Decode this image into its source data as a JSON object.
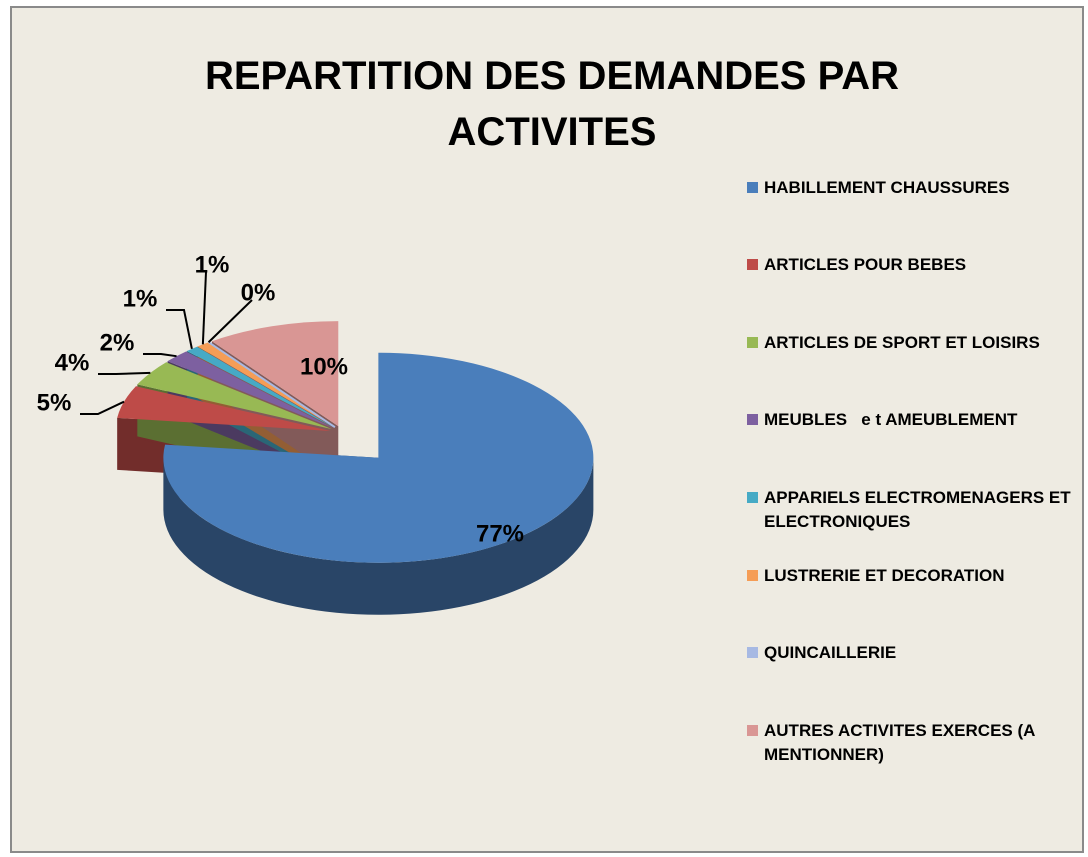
{
  "chart_data": {
    "type": "pie",
    "title": "REPARTITION DES DEMANDES PAR ACTIVITES",
    "categories": [
      "HABILLEMENT CHAUSSURES",
      "ARTICLES POUR BEBES",
      "ARTICLES DE SPORT ET LOISIRS",
      "MEUBLES   e t AMEUBLEMENT",
      "APPARIELS ELECTROMENAGERS ET ELECTRONIQUES",
      "LUSTRERIE ET DECORATION",
      "QUINCAILLERIE",
      "AUTRES ACTIVITES EXERCES (A MENTIONNER)"
    ],
    "values": [
      77,
      5,
      4,
      2,
      1,
      1,
      0,
      10
    ],
    "value_labels": [
      "77%",
      "5%",
      "4%",
      "2%",
      "1%",
      "1%",
      "0%",
      "10%"
    ],
    "colors": [
      "#4a7ebb",
      "#be4b48",
      "#98b954",
      "#7d60a0",
      "#46aac5",
      "#f59d56",
      "#a7b9e3",
      "#d99694"
    ],
    "legend": "right"
  }
}
